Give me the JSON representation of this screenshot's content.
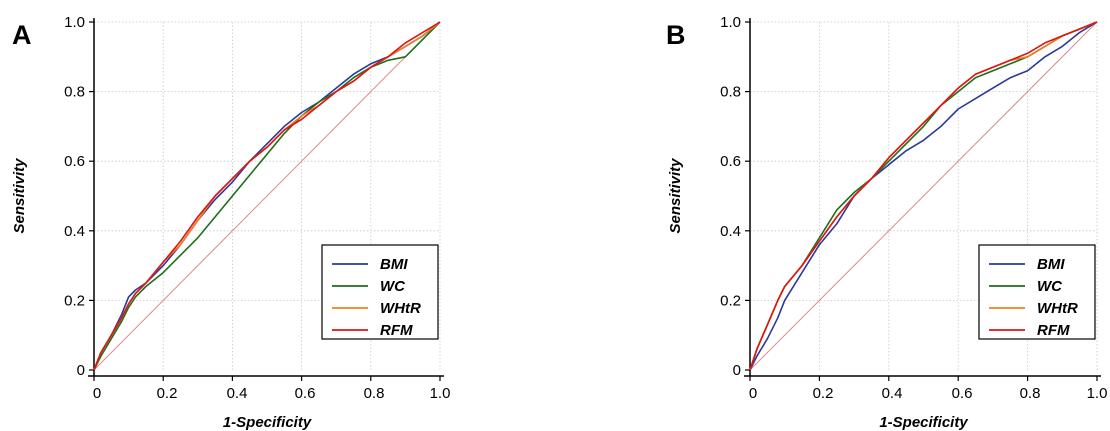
{
  "chart_data": [
    {
      "panel_label": "A",
      "type": "line",
      "xlabel": "1-Specificity",
      "ylabel": "Sensitivity",
      "xlim": [
        0,
        1
      ],
      "ylim": [
        0,
        1
      ],
      "x_ticks": [
        "0",
        "0.2",
        "0.4",
        "0.6",
        "0.8",
        "1.0"
      ],
      "y_ticks": [
        "0",
        "0.2",
        "0.4",
        "0.6",
        "0.8",
        "1.0"
      ],
      "grid": true,
      "legend_position": "bottom-right",
      "reference_line": {
        "color": "#d98a8a",
        "points": [
          [
            0,
            0
          ],
          [
            1,
            1
          ]
        ]
      },
      "series": [
        {
          "name": "BMI",
          "color": "#2a3a9a",
          "points": [
            [
              0,
              0
            ],
            [
              0.02,
              0.05
            ],
            [
              0.05,
              0.1
            ],
            [
              0.08,
              0.16
            ],
            [
              0.1,
              0.21
            ],
            [
              0.12,
              0.23
            ],
            [
              0.15,
              0.25
            ],
            [
              0.2,
              0.3
            ],
            [
              0.25,
              0.36
            ],
            [
              0.3,
              0.43
            ],
            [
              0.35,
              0.49
            ],
            [
              0.4,
              0.54
            ],
            [
              0.45,
              0.6
            ],
            [
              0.5,
              0.65
            ],
            [
              0.55,
              0.7
            ],
            [
              0.6,
              0.74
            ],
            [
              0.65,
              0.77
            ],
            [
              0.7,
              0.81
            ],
            [
              0.75,
              0.85
            ],
            [
              0.8,
              0.88
            ],
            [
              0.85,
              0.9
            ],
            [
              0.9,
              0.93
            ],
            [
              0.95,
              0.96
            ],
            [
              1,
              1
            ]
          ]
        },
        {
          "name": "WC",
          "color": "#1e6e1e",
          "points": [
            [
              0,
              0
            ],
            [
              0.02,
              0.04
            ],
            [
              0.05,
              0.09
            ],
            [
              0.08,
              0.14
            ],
            [
              0.1,
              0.18
            ],
            [
              0.12,
              0.21
            ],
            [
              0.15,
              0.24
            ],
            [
              0.2,
              0.28
            ],
            [
              0.25,
              0.33
            ],
            [
              0.3,
              0.38
            ],
            [
              0.35,
              0.44
            ],
            [
              0.4,
              0.5
            ],
            [
              0.45,
              0.56
            ],
            [
              0.5,
              0.62
            ],
            [
              0.55,
              0.68
            ],
            [
              0.6,
              0.73
            ],
            [
              0.65,
              0.77
            ],
            [
              0.7,
              0.8
            ],
            [
              0.75,
              0.84
            ],
            [
              0.8,
              0.87
            ],
            [
              0.85,
              0.89
            ],
            [
              0.9,
              0.9
            ],
            [
              0.95,
              0.95
            ],
            [
              1,
              1
            ]
          ]
        },
        {
          "name": "WHtR",
          "color": "#f07f1e",
          "points": [
            [
              0,
              0
            ],
            [
              0.02,
              0.05
            ],
            [
              0.05,
              0.1
            ],
            [
              0.08,
              0.15
            ],
            [
              0.1,
              0.19
            ],
            [
              0.12,
              0.22
            ],
            [
              0.15,
              0.25
            ],
            [
              0.2,
              0.31
            ],
            [
              0.25,
              0.36
            ],
            [
              0.3,
              0.43
            ],
            [
              0.35,
              0.5
            ],
            [
              0.4,
              0.55
            ],
            [
              0.45,
              0.6
            ],
            [
              0.5,
              0.64
            ],
            [
              0.55,
              0.69
            ],
            [
              0.6,
              0.73
            ],
            [
              0.65,
              0.76
            ],
            [
              0.7,
              0.8
            ],
            [
              0.75,
              0.83
            ],
            [
              0.8,
              0.87
            ],
            [
              0.85,
              0.9
            ],
            [
              0.9,
              0.93
            ],
            [
              0.95,
              0.96
            ],
            [
              1,
              1
            ]
          ]
        },
        {
          "name": "RFM",
          "color": "#e01414",
          "points": [
            [
              0,
              0
            ],
            [
              0.02,
              0.05
            ],
            [
              0.05,
              0.1
            ],
            [
              0.08,
              0.15
            ],
            [
              0.1,
              0.19
            ],
            [
              0.12,
              0.22
            ],
            [
              0.15,
              0.25
            ],
            [
              0.2,
              0.31
            ],
            [
              0.25,
              0.37
            ],
            [
              0.3,
              0.44
            ],
            [
              0.35,
              0.5
            ],
            [
              0.4,
              0.55
            ],
            [
              0.45,
              0.6
            ],
            [
              0.5,
              0.64
            ],
            [
              0.55,
              0.69
            ],
            [
              0.6,
              0.72
            ],
            [
              0.65,
              0.76
            ],
            [
              0.7,
              0.8
            ],
            [
              0.75,
              0.83
            ],
            [
              0.8,
              0.87
            ],
            [
              0.85,
              0.9
            ],
            [
              0.9,
              0.94
            ],
            [
              0.95,
              0.97
            ],
            [
              1,
              1
            ]
          ]
        }
      ]
    },
    {
      "panel_label": "B",
      "type": "line",
      "xlabel": "1-Specificity",
      "ylabel": "Sensitivity",
      "xlim": [
        0,
        1
      ],
      "ylim": [
        0,
        1
      ],
      "x_ticks": [
        "0",
        "0.2",
        "0.4",
        "0.6",
        "0.8",
        "1.0"
      ],
      "y_ticks": [
        "0",
        "0.2",
        "0.4",
        "0.6",
        "0.8",
        "1.0"
      ],
      "grid": true,
      "legend_position": "bottom-right",
      "reference_line": {
        "color": "#d98a8a",
        "points": [
          [
            0,
            0
          ],
          [
            1,
            1
          ]
        ]
      },
      "series": [
        {
          "name": "BMI",
          "color": "#2a3a9a",
          "points": [
            [
              0,
              0
            ],
            [
              0.02,
              0.04
            ],
            [
              0.05,
              0.09
            ],
            [
              0.08,
              0.15
            ],
            [
              0.1,
              0.2
            ],
            [
              0.15,
              0.28
            ],
            [
              0.2,
              0.36
            ],
            [
              0.25,
              0.42
            ],
            [
              0.3,
              0.5
            ],
            [
              0.35,
              0.55
            ],
            [
              0.4,
              0.59
            ],
            [
              0.45,
              0.63
            ],
            [
              0.5,
              0.66
            ],
            [
              0.55,
              0.7
            ],
            [
              0.6,
              0.75
            ],
            [
              0.65,
              0.78
            ],
            [
              0.7,
              0.81
            ],
            [
              0.75,
              0.84
            ],
            [
              0.8,
              0.86
            ],
            [
              0.85,
              0.9
            ],
            [
              0.9,
              0.93
            ],
            [
              0.95,
              0.97
            ],
            [
              1,
              1
            ]
          ]
        },
        {
          "name": "WC",
          "color": "#1e6e1e",
          "points": [
            [
              0,
              0
            ],
            [
              0.02,
              0.06
            ],
            [
              0.05,
              0.13
            ],
            [
              0.08,
              0.2
            ],
            [
              0.1,
              0.24
            ],
            [
              0.15,
              0.3
            ],
            [
              0.2,
              0.38
            ],
            [
              0.25,
              0.46
            ],
            [
              0.3,
              0.51
            ],
            [
              0.35,
              0.55
            ],
            [
              0.4,
              0.6
            ],
            [
              0.45,
              0.65
            ],
            [
              0.5,
              0.7
            ],
            [
              0.55,
              0.76
            ],
            [
              0.6,
              0.8
            ],
            [
              0.65,
              0.84
            ],
            [
              0.7,
              0.86
            ],
            [
              0.75,
              0.88
            ],
            [
              0.8,
              0.9
            ],
            [
              0.85,
              0.93
            ],
            [
              0.9,
              0.96
            ],
            [
              0.95,
              0.98
            ],
            [
              1,
              1
            ]
          ]
        },
        {
          "name": "WHtR",
          "color": "#f07f1e",
          "points": [
            [
              0,
              0
            ],
            [
              0.02,
              0.06
            ],
            [
              0.05,
              0.13
            ],
            [
              0.08,
              0.2
            ],
            [
              0.1,
              0.24
            ],
            [
              0.15,
              0.3
            ],
            [
              0.2,
              0.37
            ],
            [
              0.25,
              0.44
            ],
            [
              0.3,
              0.5
            ],
            [
              0.35,
              0.55
            ],
            [
              0.4,
              0.61
            ],
            [
              0.45,
              0.66
            ],
            [
              0.5,
              0.71
            ],
            [
              0.55,
              0.76
            ],
            [
              0.6,
              0.81
            ],
            [
              0.65,
              0.85
            ],
            [
              0.7,
              0.87
            ],
            [
              0.75,
              0.89
            ],
            [
              0.8,
              0.9
            ],
            [
              0.85,
              0.93
            ],
            [
              0.9,
              0.96
            ],
            [
              0.95,
              0.98
            ],
            [
              1,
              1
            ]
          ]
        },
        {
          "name": "RFM",
          "color": "#e01414",
          "points": [
            [
              0,
              0
            ],
            [
              0.02,
              0.06
            ],
            [
              0.05,
              0.13
            ],
            [
              0.08,
              0.2
            ],
            [
              0.1,
              0.24
            ],
            [
              0.15,
              0.3
            ],
            [
              0.2,
              0.37
            ],
            [
              0.25,
              0.44
            ],
            [
              0.3,
              0.5
            ],
            [
              0.35,
              0.55
            ],
            [
              0.4,
              0.61
            ],
            [
              0.45,
              0.66
            ],
            [
              0.5,
              0.71
            ],
            [
              0.55,
              0.76
            ],
            [
              0.6,
              0.81
            ],
            [
              0.65,
              0.85
            ],
            [
              0.7,
              0.87
            ],
            [
              0.75,
              0.89
            ],
            [
              0.8,
              0.91
            ],
            [
              0.85,
              0.94
            ],
            [
              0.9,
              0.96
            ],
            [
              0.95,
              0.98
            ],
            [
              1,
              1
            ]
          ]
        }
      ]
    }
  ]
}
